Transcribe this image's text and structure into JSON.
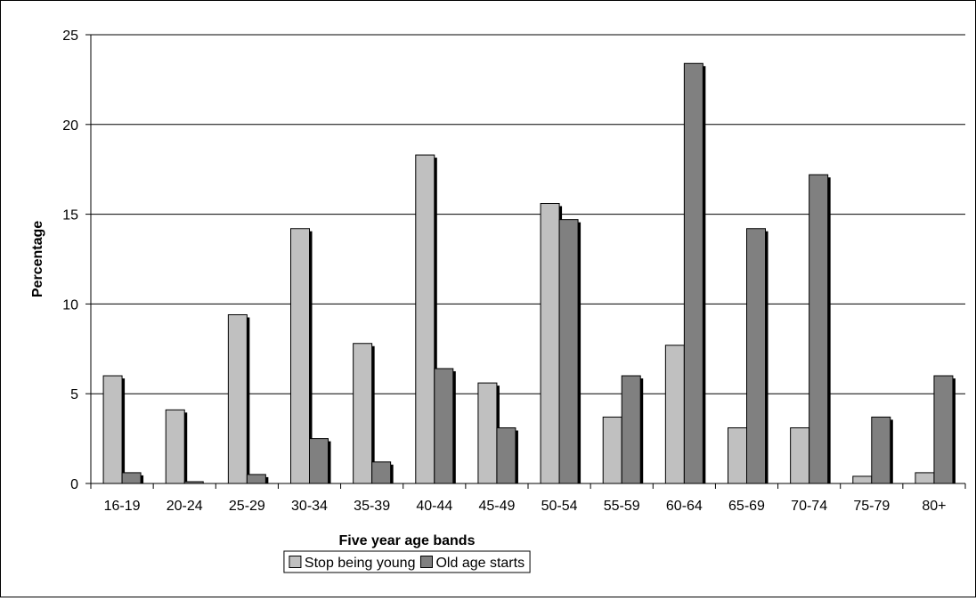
{
  "chart_data": {
    "type": "bar",
    "title": "",
    "xlabel": "Five year age bands",
    "ylabel": "Percentage",
    "ylim": [
      0,
      25
    ],
    "yticks": [
      0,
      5,
      10,
      15,
      20,
      25
    ],
    "grid": true,
    "legend_position": "bottom-center",
    "categories": [
      "16-19",
      "20-24",
      "25-29",
      "30-34",
      "35-39",
      "40-44",
      "45-49",
      "50-54",
      "55-59",
      "60-64",
      "65-69",
      "70-74",
      "75-79",
      "80+"
    ],
    "series": [
      {
        "name": "Stop being young",
        "color": "#c0c0c0",
        "values": [
          6.0,
          4.1,
          9.4,
          14.2,
          7.8,
          18.3,
          5.6,
          15.6,
          3.7,
          7.7,
          3.1,
          3.1,
          0.4,
          0.6
        ]
      },
      {
        "name": "Old age starts",
        "color": "#808080",
        "values": [
          0.6,
          0.1,
          0.5,
          2.5,
          1.2,
          6.4,
          3.1,
          14.7,
          6.0,
          23.4,
          14.2,
          17.2,
          3.7,
          6.0
        ]
      }
    ]
  }
}
